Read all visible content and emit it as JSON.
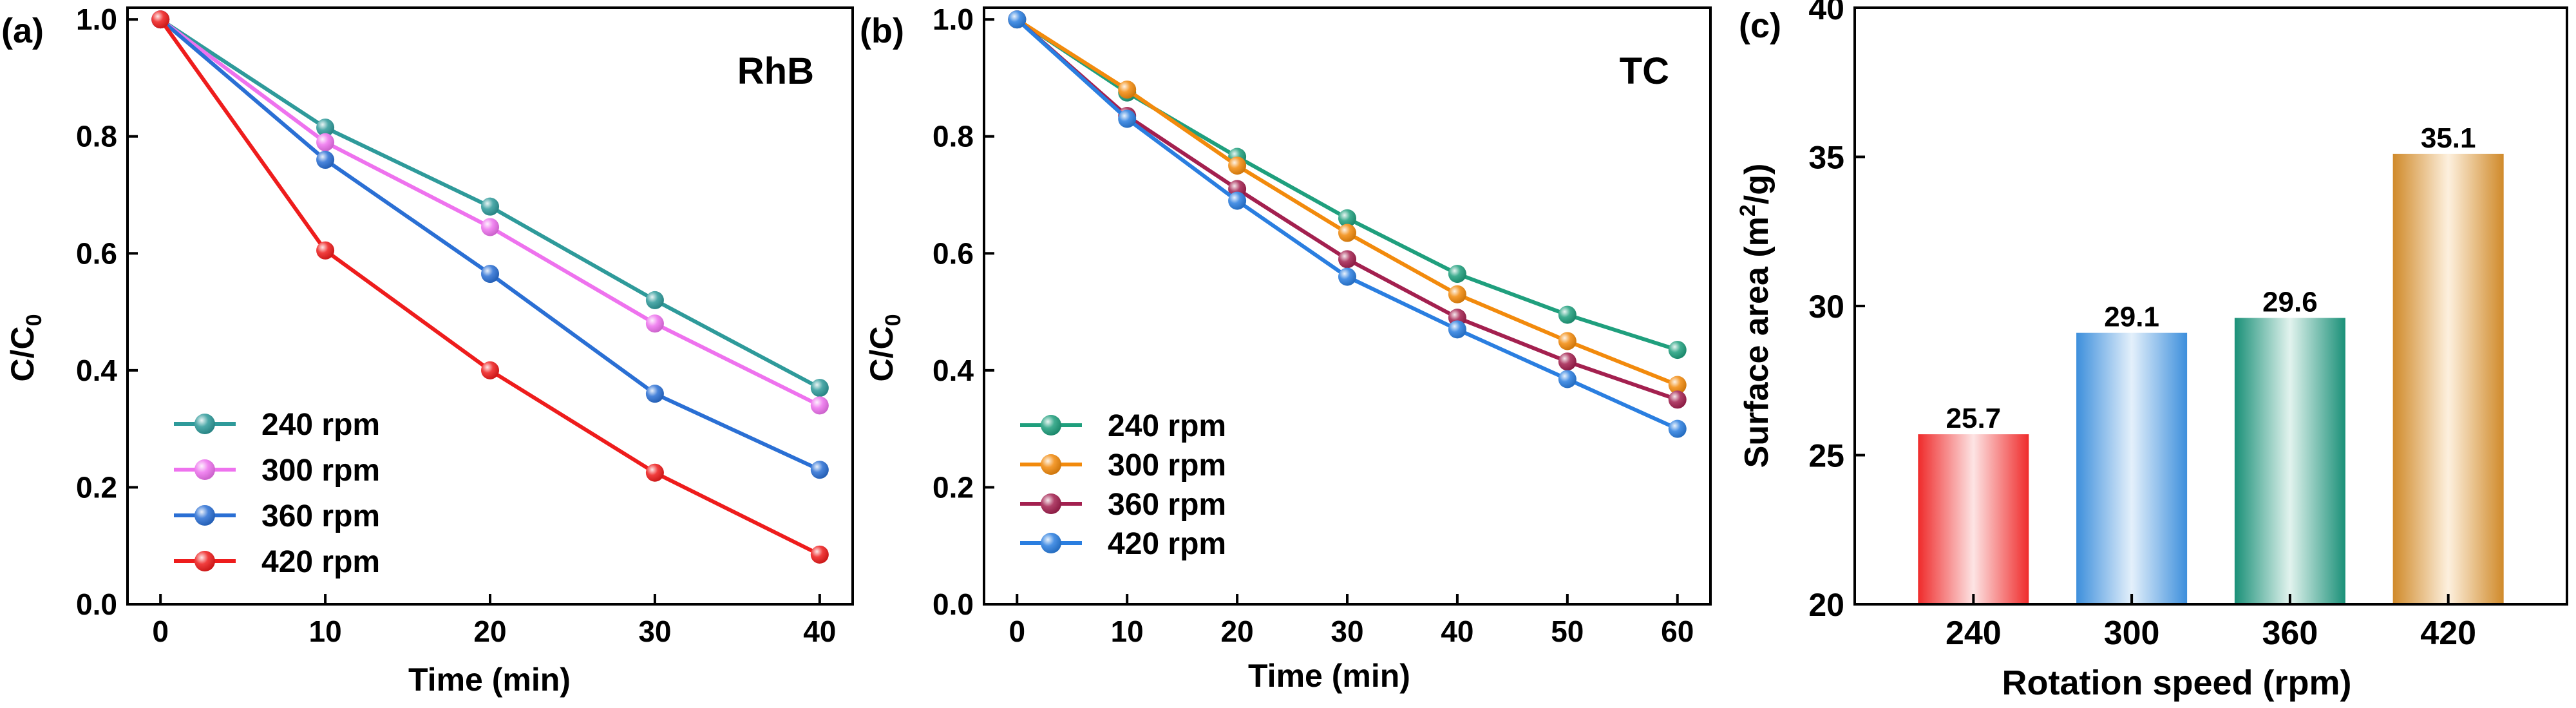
{
  "chart_data": [
    {
      "type": "line",
      "panel_label": "(a)",
      "title": "RhB",
      "xlabel": "Time (min)",
      "ylabel_main": "C/C",
      "ylabel_sub": "0",
      "xlim": [
        -2,
        42
      ],
      "ylim": [
        0,
        1.02
      ],
      "x_ticks": [
        "0",
        "10",
        "20",
        "30",
        "40"
      ],
      "y_ticks": [
        "0.0",
        "0.2",
        "0.4",
        "0.6",
        "0.8",
        "1.0"
      ],
      "legend_position": "bottom-left",
      "series": [
        {
          "name": "240 rpm",
          "color": "#2e9a9a",
          "x": [
            0,
            10,
            20,
            30,
            40
          ],
          "values": [
            1.0,
            0.815,
            0.68,
            0.52,
            0.37
          ]
        },
        {
          "name": "300 rpm",
          "color": "#ee72ee",
          "x": [
            0,
            10,
            20,
            30,
            40
          ],
          "values": [
            1.0,
            0.79,
            0.645,
            0.48,
            0.34
          ]
        },
        {
          "name": "360 rpm",
          "color": "#2a6fd4",
          "x": [
            0,
            10,
            20,
            30,
            40
          ],
          "values": [
            1.0,
            0.76,
            0.565,
            0.36,
            0.23
          ]
        },
        {
          "name": "420 rpm",
          "color": "#ee1c1c",
          "x": [
            0,
            10,
            20,
            30,
            40
          ],
          "values": [
            1.0,
            0.605,
            0.4,
            0.225,
            0.085
          ]
        }
      ]
    },
    {
      "type": "line",
      "panel_label": "(b)",
      "title": "TC",
      "xlabel": "Time (min)",
      "ylabel_main": "C/C",
      "ylabel_sub": "0",
      "xlim": [
        -3,
        63
      ],
      "ylim": [
        0,
        1.02
      ],
      "x_ticks": [
        "0",
        "10",
        "20",
        "30",
        "40",
        "50",
        "60"
      ],
      "y_ticks": [
        "0.0",
        "0.2",
        "0.4",
        "0.6",
        "0.8",
        "1.0"
      ],
      "legend_position": "bottom-left",
      "series": [
        {
          "name": "240 rpm",
          "color": "#1f9f7d",
          "x": [
            0,
            10,
            20,
            30,
            40,
            50,
            60
          ],
          "values": [
            1.0,
            0.875,
            0.765,
            0.66,
            0.565,
            0.495,
            0.435
          ]
        },
        {
          "name": "300 rpm",
          "color": "#f28a0c",
          "x": [
            0,
            10,
            20,
            30,
            40,
            50,
            60
          ],
          "values": [
            1.0,
            0.88,
            0.75,
            0.635,
            0.53,
            0.45,
            0.375
          ]
        },
        {
          "name": "360 rpm",
          "color": "#a3204f",
          "x": [
            0,
            10,
            20,
            30,
            40,
            50,
            60
          ],
          "values": [
            1.0,
            0.835,
            0.71,
            0.59,
            0.49,
            0.415,
            0.35
          ]
        },
        {
          "name": "420 rpm",
          "color": "#2a7ee0",
          "x": [
            0,
            10,
            20,
            30,
            40,
            50,
            60
          ],
          "values": [
            1.0,
            0.83,
            0.69,
            0.56,
            0.47,
            0.385,
            0.3
          ]
        }
      ]
    },
    {
      "type": "bar",
      "panel_label": "(c)",
      "xlabel": "Rotation speed  (rpm)",
      "ylabel_main": "Surface area (m",
      "ylabel_sup": "2",
      "ylabel_tail": "/g)",
      "ylim": [
        20,
        40
      ],
      "y_ticks": [
        "20",
        "25",
        "30",
        "35",
        "40"
      ],
      "categories": [
        "240",
        "300",
        "360",
        "420"
      ],
      "values": [
        25.7,
        29.1,
        29.6,
        35.1
      ],
      "value_labels": [
        "25.7",
        "29.1",
        "29.6",
        "35.1"
      ],
      "colors": [
        "#ef2b2b",
        "#3d8fdc",
        "#1a9078",
        "#d08a2a"
      ]
    }
  ]
}
